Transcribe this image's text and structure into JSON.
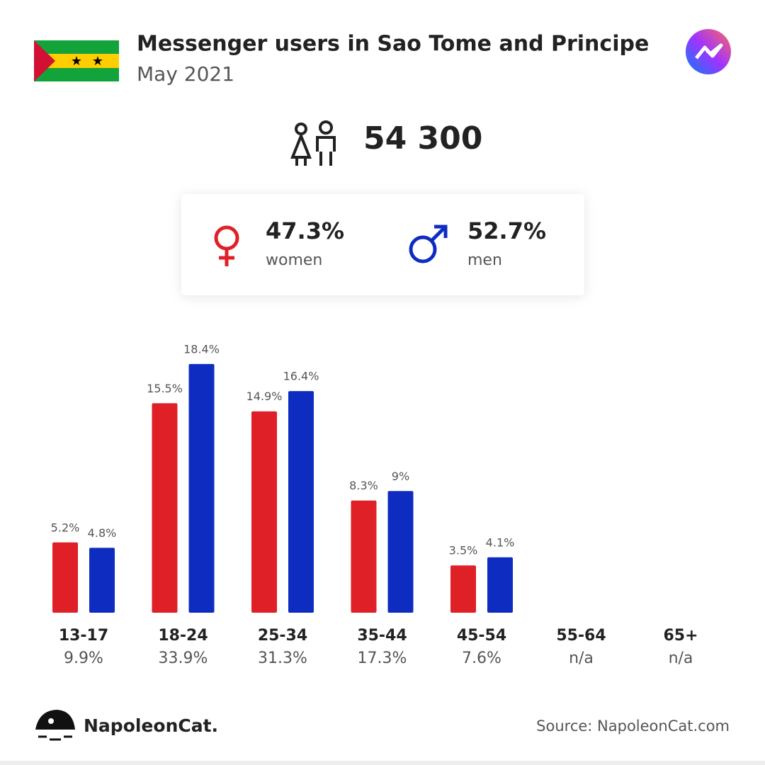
{
  "header": {
    "title": "Messenger users in Sao Tome and Principe",
    "subtitle": "May 2021",
    "total": "54 300"
  },
  "chart_data": {
    "type": "bar",
    "categories": [
      "13-17",
      "18-24",
      "25-34",
      "35-44",
      "45-54",
      "55-64",
      "65+"
    ],
    "totals": [
      "9.9%",
      "33.9%",
      "31.3%",
      "17.3%",
      "7.6%",
      "n/a",
      "n/a"
    ],
    "series": [
      {
        "name": "women",
        "share": "47.3%",
        "color": "#e02027",
        "values": [
          5.2,
          15.5,
          14.9,
          8.3,
          3.5,
          null,
          null
        ],
        "value_labels": [
          "5.2%",
          "15.5%",
          "14.9%",
          "8.3%",
          "3.5%",
          null,
          null
        ]
      },
      {
        "name": "men",
        "share": "52.7%",
        "color": "#0f2cc0",
        "values": [
          4.8,
          18.4,
          16.4,
          9,
          4.1,
          null,
          null
        ],
        "value_labels": [
          "4.8%",
          "18.4%",
          "16.4%",
          "9%",
          "4.1%",
          null,
          null
        ]
      }
    ]
  },
  "footer": {
    "brand": "NapoleonCat.",
    "source": "Source: NapoleonCat.com"
  }
}
